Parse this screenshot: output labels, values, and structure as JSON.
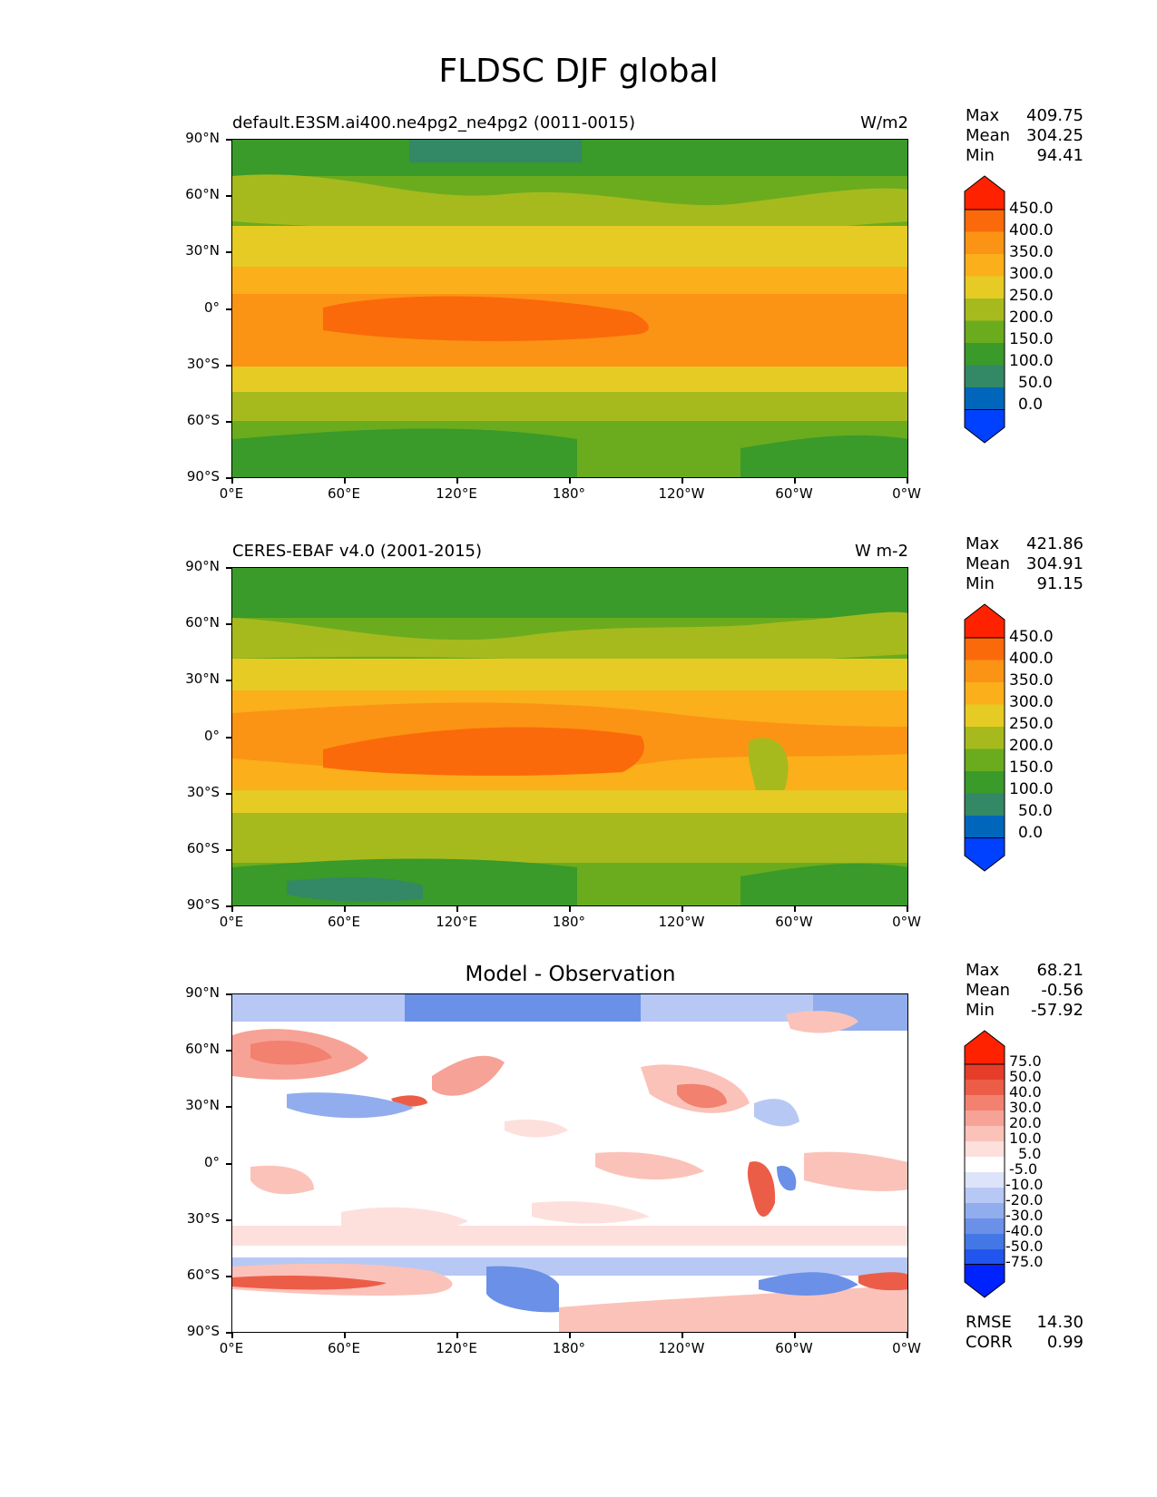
{
  "figure_title": "FLDSC DJF global",
  "panels": [
    {
      "left_title": "default.E3SM.ai400.ne4pg2_ne4pg2 (0011-0015)",
      "right_title": "W/m2",
      "stats": {
        "max_label": "Max",
        "max": "409.75",
        "mean_label": "Mean",
        "mean": "304.25",
        "min_label": "Min",
        "min": "94.41"
      },
      "colorbar_ticks": [
        "450.0",
        "400.0",
        "350.0",
        "300.0",
        "250.0",
        "200.0",
        "150.0",
        "100.0",
        "50.0",
        "0.0"
      ]
    },
    {
      "left_title": "CERES-EBAF v4.0 (2001-2015)",
      "right_title": "W m-2",
      "stats": {
        "max_label": "Max",
        "max": "421.86",
        "mean_label": "Mean",
        "mean": "304.91",
        "min_label": "Min",
        "min": "91.15"
      },
      "colorbar_ticks": [
        "450.0",
        "400.0",
        "350.0",
        "300.0",
        "250.0",
        "200.0",
        "150.0",
        "100.0",
        "50.0",
        "0.0"
      ]
    },
    {
      "center_title": "Model - Observation",
      "stats": {
        "max_label": "Max",
        "max": "68.21",
        "mean_label": "Mean",
        "mean": "-0.56",
        "min_label": "Min",
        "min": "-57.92"
      },
      "colorbar_ticks": [
        "75.0",
        "50.0",
        "40.0",
        "30.0",
        "20.0",
        "10.0",
        "5.0",
        "-5.0",
        "-10.0",
        "-20.0",
        "-30.0",
        "-40.0",
        "-50.0",
        "-75.0"
      ],
      "extra": {
        "rmse_label": "RMSE",
        "rmse": "14.30",
        "corr_label": "CORR",
        "corr": "0.99"
      }
    }
  ],
  "axes": {
    "y_ticks": [
      "90°N",
      "60°N",
      "30°N",
      "0°",
      "30°S",
      "60°S",
      "90°S"
    ],
    "x_ticks": [
      "0°E",
      "60°E",
      "120°E",
      "180°",
      "120°W",
      "60°W",
      "0°W"
    ]
  },
  "colors": {
    "abs_scale": [
      "#0040ff",
      "#0066bb",
      "#338866",
      "#3a9a2a",
      "#6aac1e",
      "#a6ba1e",
      "#e6cb24",
      "#fbaf1a",
      "#fb9414",
      "#fb6a0a",
      "#ff2200"
    ],
    "diff_scale": [
      "#0022ff",
      "#2255ee",
      "#4477e6",
      "#6a90e8",
      "#91adee",
      "#b8c8f4",
      "#dde4fa",
      "#ffffff",
      "#fde0dc",
      "#fbc2ba",
      "#f7a296",
      "#f2816f",
      "#ec5d48",
      "#e63d2a",
      "#ff2200"
    ]
  }
}
